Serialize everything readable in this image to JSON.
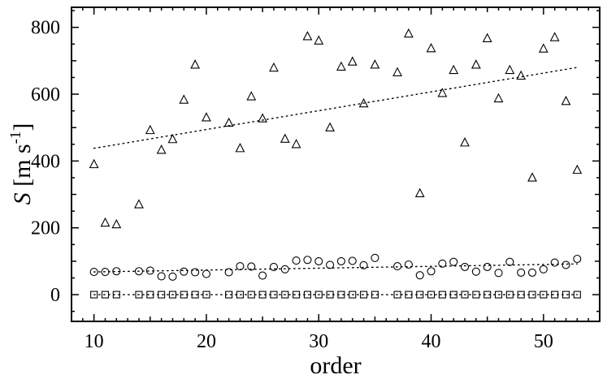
{
  "chart_data": {
    "type": "scatter",
    "title": "",
    "xlabel": "order",
    "ylabel": "S [m s⁻¹]",
    "ylabel_parts": {
      "symbol": "S",
      "open": " [m s",
      "exp": "-1",
      "close": "]"
    },
    "xlim": [
      8,
      55
    ],
    "ylim": [
      -80,
      860
    ],
    "xticks": [
      10,
      20,
      30,
      40,
      50
    ],
    "yticks": [
      0,
      200,
      400,
      600,
      800
    ],
    "grid": false,
    "legend": "none",
    "series": [
      {
        "marker": "triangle",
        "points": [
          [
            10,
            390
          ],
          [
            11,
            215
          ],
          [
            12,
            210
          ],
          [
            14,
            270
          ],
          [
            15,
            492
          ],
          [
            16,
            433
          ],
          [
            17,
            465
          ],
          [
            18,
            583
          ],
          [
            19,
            688
          ],
          [
            20,
            530
          ],
          [
            22,
            514
          ],
          [
            23,
            438
          ],
          [
            24,
            593
          ],
          [
            25,
            527
          ],
          [
            26,
            679
          ],
          [
            27,
            466
          ],
          [
            28,
            450
          ],
          [
            29,
            773
          ],
          [
            30,
            760
          ],
          [
            31,
            500
          ],
          [
            32,
            682
          ],
          [
            33,
            697
          ],
          [
            34,
            572
          ],
          [
            35,
            688
          ],
          [
            37,
            665
          ],
          [
            38,
            781
          ],
          [
            39,
            303
          ],
          [
            40,
            737
          ],
          [
            41,
            603
          ],
          [
            42,
            672
          ],
          [
            43,
            455
          ],
          [
            44,
            688
          ],
          [
            45,
            767
          ],
          [
            46,
            587
          ],
          [
            47,
            672
          ],
          [
            48,
            655
          ],
          [
            49,
            350
          ],
          [
            50,
            736
          ],
          [
            51,
            770
          ],
          [
            52,
            579
          ],
          [
            53,
            373
          ]
        ],
        "trend": [
          [
            10,
            438
          ],
          [
            53,
            680
          ]
        ]
      },
      {
        "marker": "circle",
        "points": [
          [
            10,
            68
          ],
          [
            11,
            68
          ],
          [
            12,
            70
          ],
          [
            14,
            70
          ],
          [
            15,
            72
          ],
          [
            16,
            55
          ],
          [
            17,
            54
          ],
          [
            18,
            69
          ],
          [
            19,
            67
          ],
          [
            20,
            62
          ],
          [
            22,
            67
          ],
          [
            23,
            85
          ],
          [
            24,
            84
          ],
          [
            25,
            57
          ],
          [
            26,
            83
          ],
          [
            27,
            76
          ],
          [
            28,
            102
          ],
          [
            29,
            104
          ],
          [
            30,
            100
          ],
          [
            31,
            89
          ],
          [
            32,
            100
          ],
          [
            33,
            101
          ],
          [
            34,
            88
          ],
          [
            35,
            110
          ],
          [
            37,
            85
          ],
          [
            38,
            90
          ],
          [
            39,
            58
          ],
          [
            40,
            70
          ],
          [
            41,
            93
          ],
          [
            42,
            98
          ],
          [
            43,
            83
          ],
          [
            44,
            69
          ],
          [
            45,
            83
          ],
          [
            46,
            65
          ],
          [
            47,
            98
          ],
          [
            48,
            66
          ],
          [
            49,
            66
          ],
          [
            50,
            76
          ],
          [
            51,
            96
          ],
          [
            52,
            89
          ],
          [
            53,
            107
          ]
        ],
        "trend": [
          [
            10,
            68
          ],
          [
            53,
            92
          ]
        ]
      },
      {
        "marker": "square",
        "points": [
          [
            10,
            0
          ],
          [
            11,
            0
          ],
          [
            12,
            0
          ],
          [
            14,
            0
          ],
          [
            15,
            0
          ],
          [
            16,
            0
          ],
          [
            17,
            0
          ],
          [
            18,
            0
          ],
          [
            19,
            0
          ],
          [
            20,
            0
          ],
          [
            22,
            0
          ],
          [
            23,
            0
          ],
          [
            24,
            0
          ],
          [
            25,
            0
          ],
          [
            26,
            0
          ],
          [
            27,
            0
          ],
          [
            28,
            0
          ],
          [
            29,
            0
          ],
          [
            30,
            0
          ],
          [
            31,
            0
          ],
          [
            32,
            0
          ],
          [
            33,
            0
          ],
          [
            34,
            0
          ],
          [
            35,
            0
          ],
          [
            37,
            0
          ],
          [
            38,
            0
          ],
          [
            39,
            0
          ],
          [
            40,
            0
          ],
          [
            41,
            0
          ],
          [
            42,
            0
          ],
          [
            43,
            0
          ],
          [
            44,
            0
          ],
          [
            45,
            0
          ],
          [
            46,
            0
          ],
          [
            47,
            0
          ],
          [
            48,
            0
          ],
          [
            49,
            0
          ],
          [
            50,
            0
          ],
          [
            51,
            0
          ],
          [
            52,
            0
          ],
          [
            53,
            0
          ]
        ],
        "trend": [
          [
            10,
            0
          ],
          [
            53,
            0
          ]
        ]
      }
    ]
  }
}
